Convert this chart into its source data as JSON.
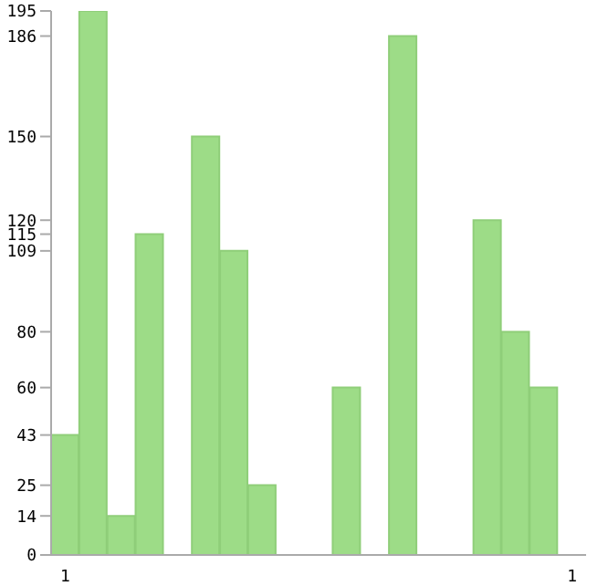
{
  "chart_data": {
    "type": "bar",
    "categories": [
      "1",
      null,
      null,
      null,
      null,
      null,
      null,
      null,
      null,
      null,
      null,
      null,
      null,
      null,
      null,
      null,
      null,
      null,
      "1"
    ],
    "values": [
      43,
      195,
      14,
      115,
      0,
      150,
      109,
      25,
      0,
      0,
      60,
      0,
      186,
      0,
      0,
      120,
      80,
      60,
      0
    ],
    "color": "#9ddc87",
    "ylim": [
      0,
      195
    ],
    "yticks": [
      0,
      14,
      25,
      43,
      60,
      80,
      109,
      115,
      120,
      150,
      186,
      195
    ]
  }
}
